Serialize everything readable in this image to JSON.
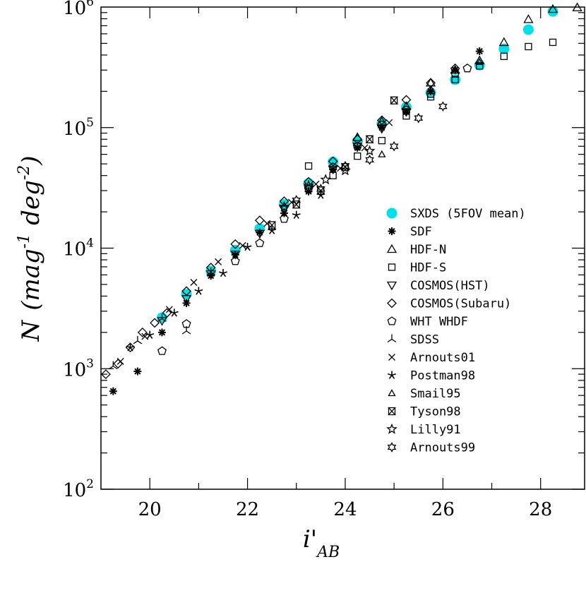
{
  "chart_data": {
    "type": "scatter",
    "title": "",
    "xlabel": "i'",
    "xlabel_sub": "AB",
    "ylabel_main": "N",
    "ylabel_units": "(mag",
    "ylabel_units_exp": "-1",
    "ylabel_deg": "deg",
    "ylabel_deg_exp": "-2",
    "ylabel_close": ")",
    "xlim": [
      19.0,
      28.9
    ],
    "ylim_log10": [
      2,
      6
    ],
    "y_scale": "log",
    "x_ticks": [
      {
        "value": 20,
        "label": "20"
      },
      {
        "value": 22,
        "label": "22"
      },
      {
        "value": 24,
        "label": "24"
      },
      {
        "value": 26,
        "label": "26"
      },
      {
        "value": 28,
        "label": "28"
      }
    ],
    "y_ticks": [
      {
        "exp": 2,
        "base": "10",
        "sup": "2"
      },
      {
        "exp": 3,
        "base": "10",
        "sup": "3"
      },
      {
        "exp": 4,
        "base": "10",
        "sup": "4"
      },
      {
        "exp": 5,
        "base": "10",
        "sup": "5"
      },
      {
        "exp": 6,
        "base": "10",
        "sup": "6"
      }
    ],
    "legend_position": "right-center",
    "series": [
      {
        "name": "SXDS (5FOV mean)",
        "marker": "filled-circle",
        "color": "#00e0e8",
        "x": [
          20.25,
          20.75,
          21.25,
          21.75,
          22.25,
          22.75,
          23.25,
          23.75,
          24.25,
          24.75,
          25.25,
          25.75,
          26.25,
          26.75,
          27.25,
          27.75,
          28.25
        ],
        "y": [
          2650,
          4150,
          6450,
          9600,
          14500,
          23000,
          34500,
          52000,
          77000,
          108000,
          148000,
          195000,
          250000,
          330000,
          450000,
          650000,
          920000
        ]
      },
      {
        "name": "SDF",
        "marker": "asterisk",
        "color": "#000000",
        "x": [
          19.25,
          19.75,
          20.25,
          20.75,
          21.25,
          21.75,
          22.25,
          22.75,
          23.25,
          23.75,
          24.25,
          24.75,
          25.25,
          25.75,
          26.25,
          26.75
        ],
        "y": [
          650,
          950,
          2000,
          3500,
          5900,
          8800,
          13500,
          19500,
          29500,
          45000,
          68000,
          100000,
          135000,
          200000,
          300000,
          430000
        ]
      },
      {
        "name": "HDF-N",
        "marker": "triangle",
        "color": "#000000",
        "x": [
          24.25,
          24.75,
          25.25,
          25.75,
          26.25,
          26.75,
          27.25,
          27.75,
          28.25,
          28.75
        ],
        "y": [
          83000,
          112000,
          150000,
          235000,
          300000,
          360000,
          510000,
          790000,
          960000,
          990000
        ]
      },
      {
        "name": "HDF-S",
        "marker": "square",
        "color": "#000000",
        "x": [
          23.25,
          23.75,
          24.25,
          24.75,
          25.25,
          25.75,
          26.25,
          26.75,
          27.25,
          27.75,
          28.25
        ],
        "y": [
          48000,
          40000,
          58000,
          78000,
          125000,
          180000,
          250000,
          325000,
          390000,
          470000,
          510000
        ]
      },
      {
        "name": "COSMOS(HST)",
        "marker": "triangle-down",
        "color": "#000000",
        "x": [
          20.25,
          20.75,
          21.25,
          21.75,
          22.25,
          22.75,
          23.25,
          23.75,
          24.25,
          24.75,
          25.25
        ],
        "y": [
          2500,
          3800,
          6100,
          8900,
          13200,
          21000,
          31000,
          45000,
          70000,
          98000,
          135000
        ]
      },
      {
        "name": "COSMOS(Subaru)",
        "marker": "diamond",
        "color": "#000000",
        "x": [
          19.1,
          19.35,
          19.6,
          19.85,
          20.1,
          20.35,
          20.75,
          21.25,
          21.75,
          22.25,
          22.75,
          23.25,
          23.75,
          24.25,
          24.75,
          25.25,
          25.75,
          26.25
        ],
        "y": [
          900,
          1100,
          1500,
          2000,
          2400,
          2900,
          4400,
          6900,
          10800,
          17000,
          24500,
          35500,
          52500,
          80000,
          115000,
          170000,
          235000,
          310000
        ]
      },
      {
        "name": "WHT WHDF",
        "marker": "pentagon",
        "color": "#000000",
        "x": [
          20.25,
          20.75,
          21.75,
          22.25,
          22.75,
          23.25,
          23.75,
          24.25,
          24.75,
          25.25,
          25.75,
          26.25,
          26.5
        ],
        "y": [
          1400,
          2350,
          7800,
          11000,
          17500,
          31000,
          47000,
          70000,
          105000,
          140000,
          190000,
          280000,
          310000
        ]
      },
      {
        "name": "SDSS",
        "marker": "tri",
        "color": "#000000",
        "x": [
          19.25,
          19.75,
          20.25,
          20.75,
          21.25
        ],
        "y": [
          1050,
          1700,
          2600,
          2050,
          6300
        ]
      },
      {
        "name": "Arnouts01",
        "marker": "cross",
        "color": "#000000",
        "x": [
          19.4,
          19.9,
          20.4,
          20.9,
          21.4,
          21.9,
          22.4,
          22.9,
          23.4,
          23.9,
          24.4,
          24.9
        ],
        "y": [
          1150,
          1850,
          3100,
          5200,
          7700,
          10500,
          16000,
          24000,
          34000,
          46000,
          68000,
          110000
        ]
      },
      {
        "name": "Postman98",
        "marker": "star",
        "color": "#000000",
        "x": [
          19.6,
          20.0,
          20.5,
          21.0,
          21.5,
          22.0,
          22.5,
          23.0,
          23.5
        ],
        "y": [
          1500,
          1900,
          2900,
          4400,
          6200,
          10200,
          14000,
          18800,
          27500
        ]
      },
      {
        "name": "Smail95",
        "marker": "small-triangle",
        "color": "#000000",
        "x": [
          24.75,
          25.75,
          26.75
        ],
        "y": [
          60000,
          210000,
          350000
        ]
      },
      {
        "name": "Tyson98",
        "marker": "hourglass",
        "color": "#000000",
        "x": [
          22.5,
          23.0,
          23.5,
          24.0,
          24.5,
          25.0
        ],
        "y": [
          15500,
          23000,
          30000,
          47000,
          80000,
          168000
        ]
      },
      {
        "name": "Lilly91",
        "marker": "open-star",
        "color": "#000000",
        "x": [
          22.75,
          23.25,
          23.6,
          24.0,
          24.5
        ],
        "y": [
          22000,
          33000,
          37000,
          44000,
          64000
        ]
      },
      {
        "name": "Arnouts99",
        "marker": "burst",
        "color": "#000000",
        "x": [
          23.0,
          23.5,
          24.0,
          24.5,
          25.0,
          25.5,
          26.0
        ],
        "y": [
          25000,
          31000,
          48000,
          54000,
          70000,
          120000,
          150000
        ]
      }
    ]
  }
}
